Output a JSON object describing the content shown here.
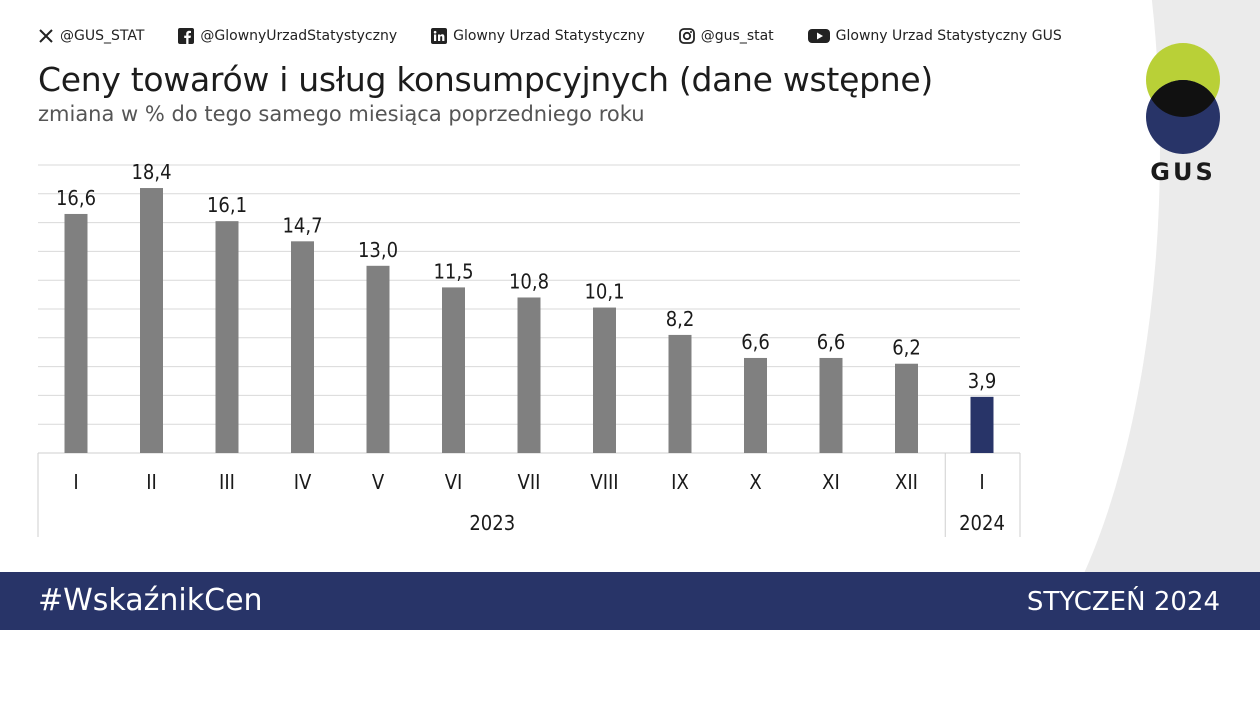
{
  "social": [
    {
      "icon": "x-logo-icon",
      "label": "@GUS_STAT"
    },
    {
      "icon": "facebook-icon",
      "label": "@GlownyUrzadStatystyczny"
    },
    {
      "icon": "linkedin-icon",
      "label": "Glowny Urzad Statystyczny"
    },
    {
      "icon": "instagram-icon",
      "label": "@gus_stat"
    },
    {
      "icon": "youtube-icon",
      "label": "Glowny Urzad Statystyczny GUS"
    }
  ],
  "header": {
    "title": "Ceny towarów i usług konsumpcyjnych (dane wstępne)",
    "subtitle": "zmiana w % do tego samego miesiąca poprzedniego roku"
  },
  "logo": {
    "text": "GUS",
    "colors": {
      "top": "#b9d037",
      "bottom": "#283468",
      "overlap": "#111111"
    }
  },
  "footer": {
    "hashtag": "#WskaźnikCen",
    "period": "STYCZEŃ 2024"
  },
  "colors": {
    "bar": "#808080",
    "highlight": "#283468",
    "grid": "#d9d9d9",
    "axis": "#cfcfcf"
  },
  "chart_data": {
    "type": "bar",
    "title": "Ceny towarów i usług konsumpcyjnych (dane wstępne)",
    "subtitle": "zmiana w % do tego samego miesiąca poprzedniego roku",
    "categories": [
      "I",
      "II",
      "III",
      "IV",
      "V",
      "VI",
      "VII",
      "VIII",
      "IX",
      "X",
      "XI",
      "XII",
      "I"
    ],
    "groups": [
      {
        "label": "2023",
        "count": 12
      },
      {
        "label": "2024",
        "count": 1
      }
    ],
    "values": [
      16.6,
      18.4,
      16.1,
      14.7,
      13.0,
      11.5,
      10.8,
      10.1,
      8.2,
      6.6,
      6.6,
      6.2,
      3.9
    ],
    "value_labels": [
      "16,6",
      "18,4",
      "16,1",
      "14,7",
      "13,0",
      "11,5",
      "10,8",
      "10,1",
      "8,2",
      "6,6",
      "6,6",
      "6,2",
      "3,9"
    ],
    "highlight_index": 12,
    "ylim": [
      0,
      20
    ],
    "grid_step": 2,
    "grid": true,
    "xlabel": "",
    "ylabel": ""
  }
}
